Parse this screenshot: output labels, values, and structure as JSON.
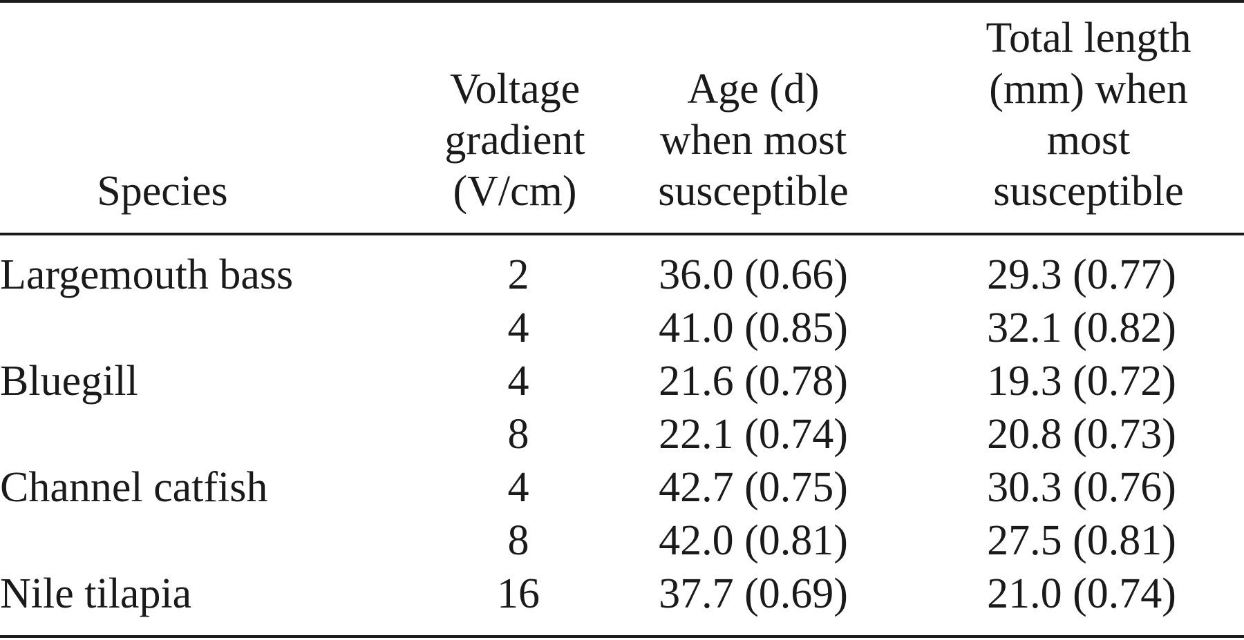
{
  "table": {
    "headers": {
      "species": [
        "Species"
      ],
      "voltage": [
        "Voltage",
        "gradient",
        "(V/cm)"
      ],
      "age": [
        "Age (d)",
        "when most",
        "susceptible"
      ],
      "length": [
        "Total length",
        "(mm) when",
        "most",
        "susceptible"
      ]
    },
    "rows": [
      {
        "species": "Largemouth bass",
        "voltage": "2",
        "age": "36.0 (0.66)",
        "length": "29.3 (0.77)"
      },
      {
        "species": "",
        "voltage": "4",
        "age": "41.0 (0.85)",
        "length": "32.1 (0.82)"
      },
      {
        "species": "Bluegill",
        "voltage": "4",
        "age": "21.6 (0.78)",
        "length": "19.3 (0.72)"
      },
      {
        "species": "",
        "voltage": "8",
        "age": "22.1 (0.74)",
        "length": "20.8 (0.73)"
      },
      {
        "species": "Channel catfish",
        "voltage": "4",
        "age": "42.7 (0.75)",
        "length": "30.3 (0.76)"
      },
      {
        "species": "",
        "voltage": "8",
        "age": "42.0 (0.81)",
        "length": "27.5 (0.81)"
      },
      {
        "species": "Nile tilapia",
        "voltage": "16",
        "age": "37.7 (0.69)",
        "length": "21.0 (0.74)"
      }
    ]
  }
}
